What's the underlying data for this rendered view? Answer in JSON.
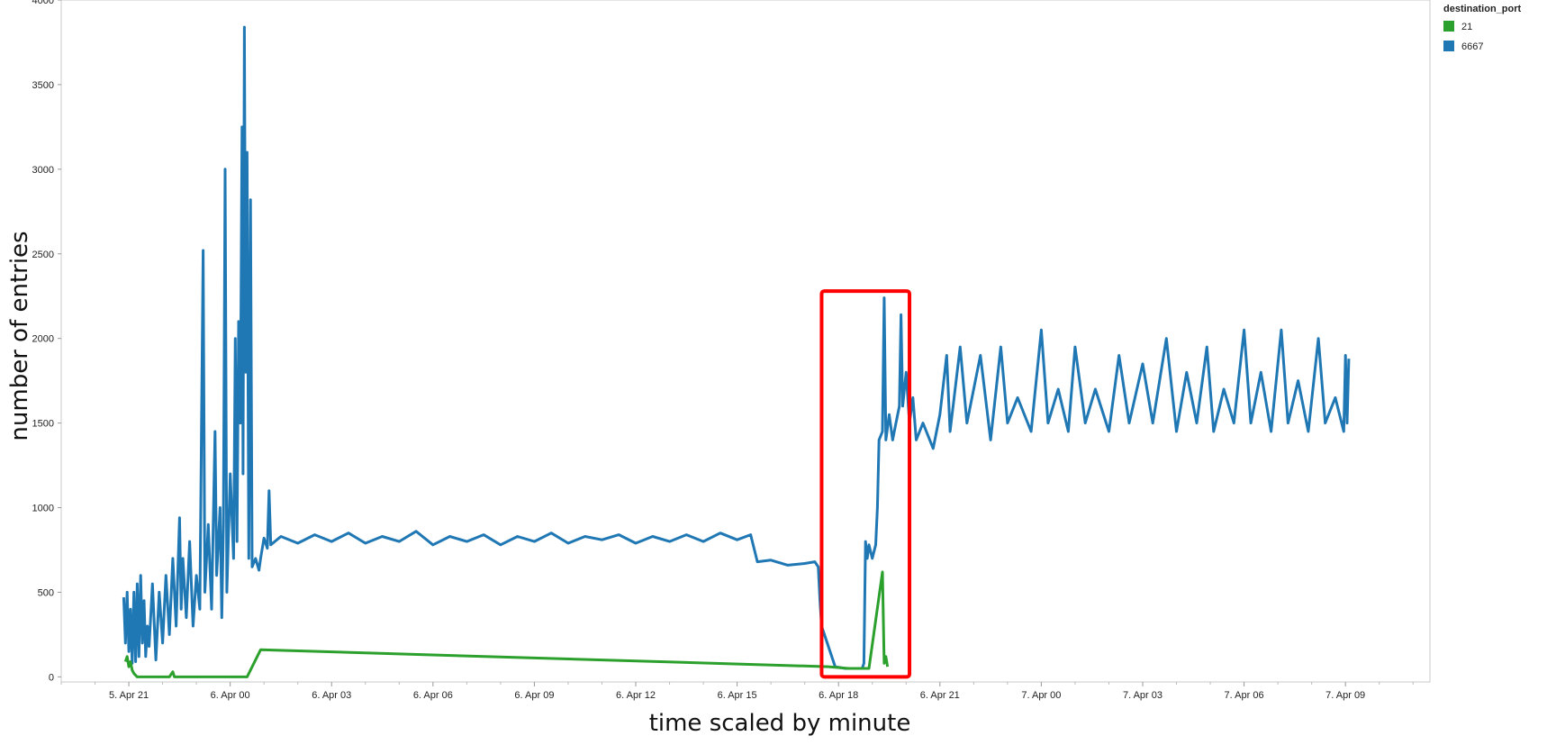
{
  "chart_data": {
    "type": "line",
    "title": "",
    "xlabel": "time scaled by minute",
    "ylabel": "number of entries",
    "x_unit": "hours",
    "xlim": [
      -2.0,
      38.5
    ],
    "ylim": [
      -30,
      4000
    ],
    "y_ticks": [
      0,
      500,
      1000,
      1500,
      2000,
      2500,
      3000,
      3500,
      4000
    ],
    "x_ticks": [
      {
        "value": 0,
        "label": "5. Apr 21"
      },
      {
        "value": 3,
        "label": "6. Apr 00"
      },
      {
        "value": 6,
        "label": "6. Apr 03"
      },
      {
        "value": 9,
        "label": "6. Apr 06"
      },
      {
        "value": 12,
        "label": "6. Apr 09"
      },
      {
        "value": 15,
        "label": "6. Apr 12"
      },
      {
        "value": 18,
        "label": "6. Apr 15"
      },
      {
        "value": 21,
        "label": "6. Apr 18"
      },
      {
        "value": 24,
        "label": "6. Apr 21"
      },
      {
        "value": 27,
        "label": "7. Apr 00"
      },
      {
        "value": 30,
        "label": "7. Apr 03"
      },
      {
        "value": 33,
        "label": "7. Apr 06"
      },
      {
        "value": 36,
        "label": "7. Apr 09"
      }
    ],
    "grid": false,
    "legend": {
      "title": "destination_port",
      "position": "top-right"
    },
    "highlight": {
      "x_range": [
        20.5,
        23.1
      ],
      "y_range": [
        0,
        2280
      ],
      "color": "#ff0000"
    },
    "series": [
      {
        "name": "21",
        "color": "#2ca02c",
        "points": [
          [
            -0.1,
            90
          ],
          [
            -0.05,
            120
          ],
          [
            0,
            60
          ],
          [
            0.05,
            90
          ],
          [
            0.1,
            40
          ],
          [
            0.15,
            20
          ],
          [
            0.25,
            0
          ],
          [
            1.2,
            0
          ],
          [
            1.3,
            30
          ],
          [
            1.35,
            0
          ],
          [
            3.5,
            0
          ],
          [
            3.9,
            160
          ],
          [
            20.7,
            60
          ],
          [
            21.3,
            50
          ],
          [
            21.9,
            50
          ],
          [
            22.3,
            620
          ],
          [
            22.35,
            80
          ],
          [
            22.4,
            120
          ],
          [
            22.45,
            60
          ]
        ]
      },
      {
        "name": "6667",
        "color": "#1f77b4",
        "points": [
          [
            -0.15,
            470
          ],
          [
            -0.1,
            200
          ],
          [
            -0.05,
            500
          ],
          [
            0,
            150
          ],
          [
            0.05,
            400
          ],
          [
            0.1,
            80
          ],
          [
            0.15,
            500
          ],
          [
            0.2,
            90
          ],
          [
            0.25,
            550
          ],
          [
            0.3,
            120
          ],
          [
            0.35,
            600
          ],
          [
            0.4,
            200
          ],
          [
            0.45,
            450
          ],
          [
            0.5,
            120
          ],
          [
            0.55,
            300
          ],
          [
            0.6,
            180
          ],
          [
            0.7,
            550
          ],
          [
            0.8,
            100
          ],
          [
            0.9,
            500
          ],
          [
            1.0,
            200
          ],
          [
            1.1,
            600
          ],
          [
            1.2,
            250
          ],
          [
            1.3,
            700
          ],
          [
            1.4,
            300
          ],
          [
            1.5,
            940
          ],
          [
            1.55,
            400
          ],
          [
            1.6,
            700
          ],
          [
            1.7,
            350
          ],
          [
            1.8,
            800
          ],
          [
            1.9,
            300
          ],
          [
            2.0,
            600
          ],
          [
            2.1,
            400
          ],
          [
            2.2,
            2520
          ],
          [
            2.25,
            500
          ],
          [
            2.35,
            900
          ],
          [
            2.45,
            400
          ],
          [
            2.55,
            1450
          ],
          [
            2.6,
            600
          ],
          [
            2.7,
            1000
          ],
          [
            2.75,
            350
          ],
          [
            2.8,
            900
          ],
          [
            2.85,
            3000
          ],
          [
            2.9,
            500
          ],
          [
            3.0,
            1200
          ],
          [
            3.1,
            700
          ],
          [
            3.15,
            2000
          ],
          [
            3.2,
            800
          ],
          [
            3.25,
            2100
          ],
          [
            3.3,
            1500
          ],
          [
            3.35,
            3250
          ],
          [
            3.38,
            1200
          ],
          [
            3.42,
            3840
          ],
          [
            3.46,
            1800
          ],
          [
            3.5,
            3100
          ],
          [
            3.55,
            700
          ],
          [
            3.6,
            2820
          ],
          [
            3.65,
            650
          ],
          [
            3.75,
            700
          ],
          [
            3.85,
            630
          ],
          [
            3.9,
            700
          ],
          [
            4.0,
            820
          ],
          [
            4.1,
            760
          ],
          [
            4.15,
            1100
          ],
          [
            4.2,
            780
          ],
          [
            4.5,
            830
          ],
          [
            5.0,
            790
          ],
          [
            5.5,
            840
          ],
          [
            6.0,
            800
          ],
          [
            6.5,
            850
          ],
          [
            7.0,
            790
          ],
          [
            7.5,
            830
          ],
          [
            8.0,
            800
          ],
          [
            8.5,
            860
          ],
          [
            9.0,
            780
          ],
          [
            9.5,
            830
          ],
          [
            10.0,
            800
          ],
          [
            10.5,
            840
          ],
          [
            11.0,
            780
          ],
          [
            11.5,
            830
          ],
          [
            12.0,
            800
          ],
          [
            12.5,
            850
          ],
          [
            13.0,
            790
          ],
          [
            13.5,
            830
          ],
          [
            14.0,
            810
          ],
          [
            14.5,
            840
          ],
          [
            15.0,
            790
          ],
          [
            15.5,
            830
          ],
          [
            16.0,
            800
          ],
          [
            16.5,
            840
          ],
          [
            17.0,
            800
          ],
          [
            17.5,
            850
          ],
          [
            18.0,
            810
          ],
          [
            18.4,
            840
          ],
          [
            18.6,
            680
          ],
          [
            19.0,
            690
          ],
          [
            19.5,
            660
          ],
          [
            20.0,
            670
          ],
          [
            20.3,
            680
          ],
          [
            20.4,
            650
          ],
          [
            20.45,
            450
          ],
          [
            20.5,
            300
          ],
          [
            20.9,
            60
          ],
          [
            21.2,
            50
          ],
          [
            21.7,
            50
          ],
          [
            21.75,
            80
          ],
          [
            21.8,
            800
          ],
          [
            21.85,
            700
          ],
          [
            21.9,
            780
          ],
          [
            22.0,
            700
          ],
          [
            22.1,
            780
          ],
          [
            22.15,
            1000
          ],
          [
            22.2,
            1400
          ],
          [
            22.3,
            1450
          ],
          [
            22.35,
            2240
          ],
          [
            22.4,
            1400
          ],
          [
            22.5,
            1550
          ],
          [
            22.6,
            1400
          ],
          [
            22.7,
            1500
          ],
          [
            22.8,
            1600
          ],
          [
            22.85,
            2140
          ],
          [
            22.9,
            1600
          ],
          [
            23.0,
            1800
          ],
          [
            23.1,
            1500
          ],
          [
            23.2,
            1650
          ],
          [
            23.3,
            1400
          ],
          [
            23.5,
            1500
          ],
          [
            23.8,
            1350
          ],
          [
            24.0,
            1550
          ],
          [
            24.2,
            1900
          ],
          [
            24.3,
            1450
          ],
          [
            24.6,
            1950
          ],
          [
            24.8,
            1500
          ],
          [
            25.2,
            1900
          ],
          [
            25.5,
            1400
          ],
          [
            25.8,
            1950
          ],
          [
            26.0,
            1500
          ],
          [
            26.3,
            1650
          ],
          [
            26.7,
            1450
          ],
          [
            27.0,
            2050
          ],
          [
            27.2,
            1500
          ],
          [
            27.5,
            1700
          ],
          [
            27.8,
            1450
          ],
          [
            28.0,
            1950
          ],
          [
            28.3,
            1500
          ],
          [
            28.6,
            1700
          ],
          [
            29.0,
            1450
          ],
          [
            29.3,
            1900
          ],
          [
            29.6,
            1500
          ],
          [
            30.0,
            1850
          ],
          [
            30.3,
            1500
          ],
          [
            30.7,
            2000
          ],
          [
            31.0,
            1450
          ],
          [
            31.3,
            1800
          ],
          [
            31.6,
            1500
          ],
          [
            31.9,
            1950
          ],
          [
            32.1,
            1450
          ],
          [
            32.4,
            1700
          ],
          [
            32.7,
            1500
          ],
          [
            33.0,
            2050
          ],
          [
            33.2,
            1500
          ],
          [
            33.5,
            1800
          ],
          [
            33.8,
            1450
          ],
          [
            34.1,
            2050
          ],
          [
            34.3,
            1500
          ],
          [
            34.6,
            1750
          ],
          [
            34.9,
            1450
          ],
          [
            35.2,
            2000
          ],
          [
            35.4,
            1500
          ],
          [
            35.7,
            1650
          ],
          [
            35.95,
            1450
          ],
          [
            36.0,
            1900
          ],
          [
            36.05,
            1500
          ],
          [
            36.1,
            1880
          ]
        ]
      }
    ]
  }
}
